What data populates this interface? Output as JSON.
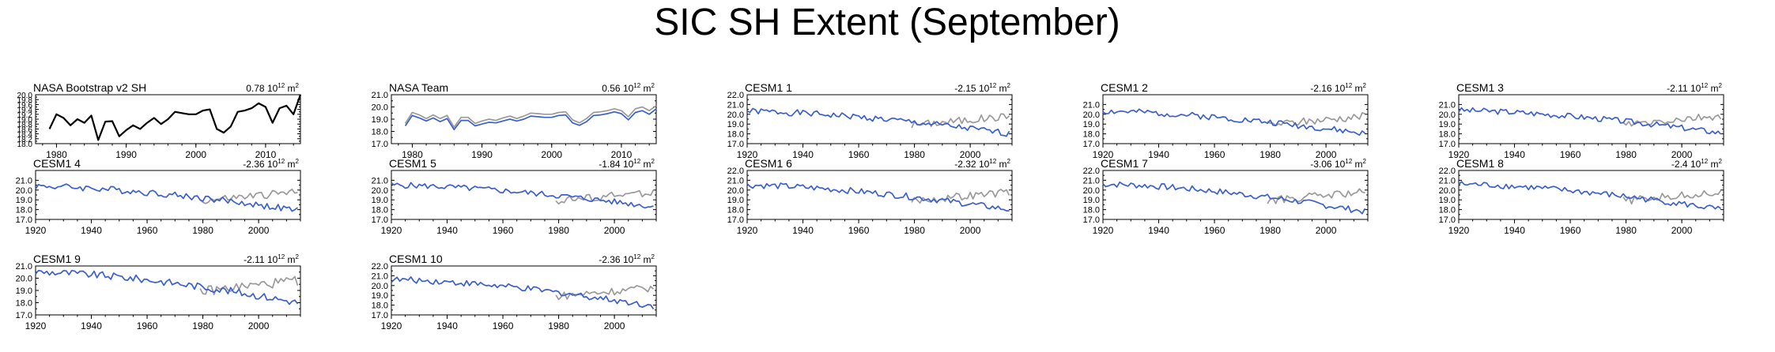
{
  "title": "SIC SH Extent (September)",
  "colors": {
    "obs": "#000000",
    "model": "#3a5fd0",
    "reference": "#9a9a9a"
  },
  "chart_data": [
    {
      "type": "line",
      "panel": "NASA Bootstrap v2 SH",
      "trend_value": "0.78",
      "trend_units": "10",
      "trend_exp": "12",
      "trend_tail": "m",
      "xlim": [
        1977,
        2015
      ],
      "ylim": [
        18.0,
        20.0
      ],
      "yticks": [
        "18.0",
        "18.2",
        "18.4",
        "18.6",
        "18.8",
        "19.0",
        "19.2",
        "19.4",
        "19.6",
        "19.8",
        "20.0"
      ],
      "xticks": [
        "1980",
        "1990",
        "2000",
        "2010"
      ],
      "series": [
        {
          "role": "obs",
          "x_start": 1979,
          "step": 1,
          "values": [
            18.6,
            19.2,
            19.05,
            18.75,
            19.0,
            18.85,
            19.15,
            18.15,
            18.9,
            18.92,
            18.3,
            18.55,
            18.75,
            18.6,
            18.85,
            19.05,
            18.8,
            19.0,
            19.3,
            19.25,
            19.2,
            19.2,
            19.35,
            19.4,
            18.6,
            18.45,
            18.7,
            19.3,
            19.35,
            19.45,
            19.65,
            19.5,
            18.85,
            19.45,
            19.55,
            19.2,
            20.0
          ]
        }
      ]
    },
    {
      "type": "line",
      "panel": "NASA Team",
      "trend_value": "0.56",
      "trend_units": "10",
      "trend_exp": "12",
      "trend_tail": "m",
      "xlim": [
        1977,
        2015
      ],
      "ylim": [
        17.0,
        21.0
      ],
      "yticks": [
        "17.0",
        "18.0",
        "19.0",
        "20.0",
        "21.0"
      ],
      "xticks": [
        "1980",
        "1990",
        "2000",
        "2010"
      ],
      "series": [
        {
          "role": "reference",
          "x_start": 1979,
          "step": 1,
          "values": [
            18.65,
            19.55,
            19.35,
            19.05,
            19.35,
            19.05,
            19.3,
            18.35,
            19.15,
            19.15,
            18.65,
            18.85,
            19.0,
            18.9,
            19.1,
            19.25,
            19.05,
            19.25,
            19.5,
            19.45,
            19.4,
            19.4,
            19.55,
            19.6,
            18.95,
            18.7,
            19.05,
            19.55,
            19.6,
            19.7,
            19.85,
            19.7,
            19.2,
            19.85,
            20.0,
            19.7,
            20.1
          ]
        },
        {
          "role": "model",
          "x_start": 1979,
          "step": 1,
          "values": [
            18.45,
            19.3,
            19.1,
            18.85,
            19.1,
            18.8,
            19.05,
            18.15,
            18.9,
            18.9,
            18.45,
            18.6,
            18.75,
            18.7,
            18.85,
            19.0,
            18.85,
            19.0,
            19.25,
            19.2,
            19.15,
            19.15,
            19.3,
            19.35,
            18.7,
            18.5,
            18.8,
            19.3,
            19.35,
            19.45,
            19.6,
            19.45,
            18.95,
            19.55,
            19.7,
            19.4,
            19.85
          ]
        }
      ]
    },
    {
      "type": "line",
      "panel": "CESM1 1",
      "trend_value": "-2.15",
      "trend_units": "10",
      "trend_exp": "12",
      "trend_tail": "m",
      "seed": 1,
      "start_level": 20.3,
      "end_level": 18.0,
      "noise": 0.32,
      "xlim": [
        1920,
        2015
      ],
      "ylim": [
        17.0,
        22.0
      ],
      "yticks": [
        "17.0",
        "18.0",
        "19.0",
        "20.0",
        "21.0",
        "22.0"
      ],
      "xticks": [
        "1920",
        "1940",
        "1960",
        "1980",
        "2000"
      ]
    },
    {
      "type": "line",
      "panel": "CESM1 2",
      "trend_value": "-2.16",
      "trend_units": "10",
      "trend_exp": "12",
      "trend_tail": "m",
      "seed": 2,
      "start_level": 20.3,
      "end_level": 18.0,
      "noise": 0.32,
      "xlim": [
        1920,
        2015
      ],
      "ylim": [
        17.0,
        22.0
      ],
      "yticks": [
        "17.0",
        "18.0",
        "19.0",
        "20.0",
        "21.0"
      ],
      "xticks": [
        "1920",
        "1940",
        "1960",
        "1980",
        "2000"
      ]
    },
    {
      "type": "line",
      "panel": "CESM1 3",
      "trend_value": "-2.11",
      "trend_units": "10",
      "trend_exp": "12",
      "trend_tail": "m",
      "seed": 3,
      "start_level": 20.4,
      "end_level": 18.1,
      "noise": 0.3,
      "xlim": [
        1920,
        2015
      ],
      "ylim": [
        17.0,
        22.0
      ],
      "yticks": [
        "17.0",
        "18.0",
        "19.0",
        "20.0",
        "21.0"
      ],
      "xticks": [
        "1920",
        "1940",
        "1960",
        "1980",
        "2000"
      ]
    },
    {
      "type": "line",
      "panel": "CESM1 4",
      "trend_value": "-2.36",
      "trend_units": "10",
      "trend_exp": "12",
      "trend_tail": "m",
      "seed": 4,
      "start_level": 20.4,
      "end_level": 17.9,
      "noise": 0.34,
      "xlim": [
        1920,
        2015
      ],
      "ylim": [
        17.0,
        22.0
      ],
      "yticks": [
        "17.0",
        "18.0",
        "19.0",
        "20.0",
        "21.0"
      ],
      "xticks": [
        "1920",
        "1940",
        "1960",
        "1980",
        "2000"
      ]
    },
    {
      "type": "line",
      "panel": "CESM1 5",
      "trend_value": "-1.84",
      "trend_units": "10",
      "trend_exp": "12",
      "trend_tail": "m",
      "seed": 5,
      "start_level": 20.5,
      "end_level": 18.3,
      "noise": 0.3,
      "xlim": [
        1920,
        2015
      ],
      "ylim": [
        17.0,
        22.0
      ],
      "yticks": [
        "17.0",
        "18.0",
        "19.0",
        "20.0",
        "21.0"
      ],
      "xticks": [
        "1920",
        "1940",
        "1960",
        "1980",
        "2000"
      ]
    },
    {
      "type": "line",
      "panel": "CESM1 6",
      "trend_value": "-2.32",
      "trend_units": "10",
      "trend_exp": "12",
      "trend_tail": "m",
      "seed": 6,
      "start_level": 20.5,
      "end_level": 18.0,
      "noise": 0.32,
      "xlim": [
        1920,
        2015
      ],
      "ylim": [
        17.0,
        22.0
      ],
      "yticks": [
        "17.0",
        "18.0",
        "19.0",
        "20.0",
        "21.0",
        "22.0"
      ],
      "xticks": [
        "1920",
        "1940",
        "1960",
        "1980",
        "2000"
      ]
    },
    {
      "type": "line",
      "panel": "CESM1 7",
      "trend_value": "-3.06",
      "trend_units": "10",
      "trend_exp": "12",
      "trend_tail": "m",
      "seed": 7,
      "start_level": 20.6,
      "end_level": 17.8,
      "noise": 0.32,
      "xlim": [
        1920,
        2015
      ],
      "ylim": [
        17.0,
        22.0
      ],
      "yticks": [
        "17.0",
        "18.0",
        "19.0",
        "20.0",
        "21.0",
        "22.0"
      ],
      "xticks": [
        "1920",
        "1940",
        "1960",
        "1980",
        "2000"
      ]
    },
    {
      "type": "line",
      "panel": "CESM1 8",
      "trend_value": "-2.4",
      "trend_units": "10",
      "trend_exp": "12",
      "trend_tail": "m",
      "seed": 8,
      "start_level": 20.6,
      "end_level": 18.0,
      "noise": 0.32,
      "xlim": [
        1920,
        2015
      ],
      "ylim": [
        17.0,
        22.0
      ],
      "yticks": [
        "17.0",
        "18.0",
        "19.0",
        "20.0",
        "21.0",
        "22.0"
      ],
      "xticks": [
        "1920",
        "1940",
        "1960",
        "1980",
        "2000"
      ]
    },
    {
      "type": "line",
      "panel": "CESM1 9",
      "trend_value": "-2.11",
      "trend_units": "10",
      "trend_exp": "12",
      "trend_tail": "m",
      "seed": 9,
      "start_level": 20.5,
      "end_level": 18.0,
      "noise": 0.3,
      "xlim": [
        1920,
        2015
      ],
      "ylim": [
        17.0,
        21.0
      ],
      "yticks": [
        "17.0",
        "18.0",
        "19.0",
        "20.0",
        "21.0"
      ],
      "xticks": [
        "1920",
        "1940",
        "1960",
        "1980",
        "2000"
      ]
    },
    {
      "type": "line",
      "panel": "CESM1 10",
      "trend_value": "-2.36",
      "trend_units": "10",
      "trend_exp": "12",
      "trend_tail": "m",
      "seed": 10,
      "start_level": 20.6,
      "end_level": 17.9,
      "noise": 0.32,
      "xlim": [
        1920,
        2015
      ],
      "ylim": [
        17.0,
        22.0
      ],
      "yticks": [
        "17.0",
        "18.0",
        "19.0",
        "20.0",
        "21.0",
        "22.0"
      ],
      "xticks": [
        "1920",
        "1940",
        "1960",
        "1980",
        "2000"
      ]
    }
  ]
}
